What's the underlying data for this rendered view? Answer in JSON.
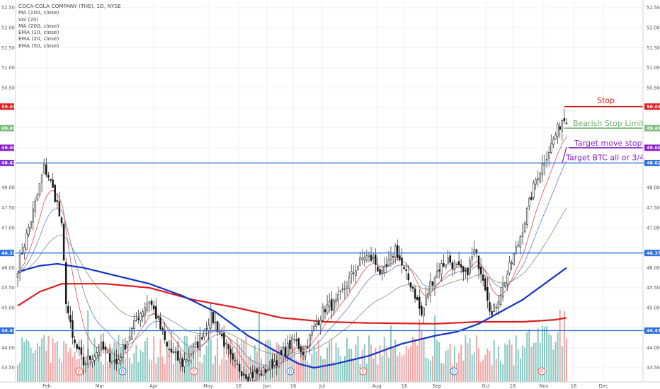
{
  "legend": {
    "symbol": "COCA-COLA COMPANY (THE), 1D, NYSE",
    "indicators": [
      "MA (100, close)",
      "Vol (20)",
      "MA (200, close)",
      "EMA (10, close)",
      "EMA (20, close)",
      "EMA (50, close)"
    ]
  },
  "chart_data": {
    "type": "candlestick",
    "ylim": [
      43.3,
      52.6
    ],
    "price_ticks": [
      "52.50",
      "52.00",
      "51.50",
      "51.00",
      "50.50",
      "50.00",
      "49.85",
      "49.49",
      "49.00",
      "48.62",
      "48.00",
      "47.50",
      "47.00",
      "46.37",
      "46.00",
      "45.50",
      "45.00",
      "44.43",
      "44.00",
      "43.50"
    ],
    "x_labels": [
      "Feb",
      "Mar",
      "Apr",
      "May",
      "16",
      "Jun",
      "16",
      "Jul",
      "Aug",
      "16",
      "Sep",
      "Oct",
      "16",
      "Nov",
      "16",
      "Dec"
    ],
    "horizontal_lines": [
      {
        "price": 48.62,
        "label": "48.62",
        "color": "#2f6fe0"
      },
      {
        "price": 46.37,
        "label": "46.37",
        "color": "#2f6fe0"
      },
      {
        "price": 44.43,
        "label": "44.43",
        "color": "#2f6fe0"
      }
    ],
    "price_flags": [
      {
        "price": 50.03,
        "label": "50.03",
        "color": "#e01b1b"
      },
      {
        "price": 49.85,
        "label": "49.85",
        "color": "#ffffff"
      },
      {
        "price": 49.49,
        "label": "49.49",
        "color": "#7fbf7f"
      },
      {
        "price": 49.0,
        "label": "49.00",
        "color": "#8a1ec8"
      },
      {
        "price": 48.62,
        "label": "48.62",
        "color": "#7a2fd8"
      },
      {
        "price": 48.62,
        "label": "48.62",
        "color": "#2f6fe0"
      },
      {
        "price": 46.37,
        "label": "46.37",
        "color": "#2f6fe0"
      },
      {
        "price": 44.43,
        "label": "44.43",
        "color": "#2f6fe0"
      }
    ],
    "annotations": [
      {
        "text": "Stop",
        "price": 50.03,
        "color": "#d11b1b"
      },
      {
        "text": "Bearish Stop Limit",
        "price": 49.49,
        "color": "#6fb56f"
      },
      {
        "text": "Target move stop",
        "price": 49.0,
        "color": "#8a1ec8"
      },
      {
        "text": "Target BTC all or 3/4",
        "price": 48.62,
        "color": "#8a1ec8"
      }
    ],
    "events": [
      {
        "letter": "E",
        "color": "#e85a5a"
      },
      {
        "letter": "D",
        "color": "#3a7ad8"
      },
      {
        "letter": "E",
        "color": "#e85a5a"
      },
      {
        "letter": "D",
        "color": "#3a7ad8"
      },
      {
        "letter": "E",
        "color": "#e85a5a"
      },
      {
        "letter": "D",
        "color": "#3a7ad8"
      },
      {
        "letter": "E",
        "color": "#e85a5a"
      }
    ],
    "candle_anchors": [
      [
        0,
        46.0
      ],
      [
        4,
        46.8
      ],
      [
        8,
        47.6
      ],
      [
        12,
        48.5
      ],
      [
        14,
        48.3
      ],
      [
        18,
        47.6
      ],
      [
        20,
        47.0
      ],
      [
        22,
        45.2
      ],
      [
        25,
        44.2
      ],
      [
        30,
        43.6
      ],
      [
        38,
        44.0
      ],
      [
        45,
        43.6
      ],
      [
        55,
        44.8
      ],
      [
        60,
        45.2
      ],
      [
        63,
        44.8
      ],
      [
        68,
        44.0
      ],
      [
        75,
        43.6
      ],
      [
        82,
        44.1
      ],
      [
        88,
        44.8
      ],
      [
        92,
        44.4
      ],
      [
        98,
        43.6
      ],
      [
        105,
        43.3
      ],
      [
        112,
        43.4
      ],
      [
        120,
        43.8
      ],
      [
        126,
        44.2
      ],
      [
        130,
        43.9
      ],
      [
        136,
        44.6
      ],
      [
        140,
        45.0
      ],
      [
        145,
        45.1
      ],
      [
        150,
        45.6
      ],
      [
        154,
        46.0
      ],
      [
        158,
        46.3
      ],
      [
        162,
        46.2
      ],
      [
        166,
        45.8
      ],
      [
        170,
        46.2
      ],
      [
        172,
        46.5
      ],
      [
        176,
        45.9
      ],
      [
        180,
        45.5
      ],
      [
        184,
        44.8
      ],
      [
        188,
        45.6
      ],
      [
        192,
        46.0
      ],
      [
        196,
        46.2
      ],
      [
        200,
        46.0
      ],
      [
        204,
        45.8
      ],
      [
        208,
        46.4
      ],
      [
        212,
        45.8
      ],
      [
        216,
        44.8
      ],
      [
        220,
        45.4
      ],
      [
        224,
        46.0
      ],
      [
        228,
        46.6
      ],
      [
        232,
        47.4
      ],
      [
        236,
        48.2
      ],
      [
        240,
        48.7
      ],
      [
        244,
        49.2
      ],
      [
        248,
        49.7
      ],
      [
        250,
        49.75
      ]
    ],
    "volume_ylim": [
      0,
      100
    ],
    "ma200_anchors": [
      [
        0,
        45.05
      ],
      [
        10,
        45.4
      ],
      [
        20,
        45.6
      ],
      [
        40,
        45.6
      ],
      [
        60,
        45.5
      ],
      [
        80,
        45.2
      ],
      [
        100,
        45.0
      ],
      [
        120,
        44.75
      ],
      [
        140,
        44.65
      ],
      [
        160,
        44.62
      ],
      [
        190,
        44.6
      ],
      [
        210,
        44.65
      ],
      [
        230,
        44.65
      ],
      [
        245,
        44.7
      ],
      [
        250,
        44.75
      ]
    ],
    "ma100_anchors": [
      [
        0,
        45.9
      ],
      [
        10,
        46.05
      ],
      [
        18,
        46.1
      ],
      [
        30,
        46.0
      ],
      [
        45,
        45.8
      ],
      [
        60,
        45.6
      ],
      [
        75,
        45.3
      ],
      [
        90,
        44.9
      ],
      [
        105,
        44.3
      ],
      [
        118,
        43.9
      ],
      [
        128,
        43.6
      ],
      [
        135,
        43.5
      ],
      [
        145,
        43.6
      ],
      [
        160,
        43.8
      ],
      [
        175,
        44.1
      ],
      [
        190,
        44.3
      ],
      [
        200,
        44.4
      ],
      [
        210,
        44.6
      ],
      [
        220,
        44.9
      ],
      [
        230,
        45.2
      ],
      [
        240,
        45.6
      ],
      [
        250,
        46.0
      ]
    ]
  }
}
